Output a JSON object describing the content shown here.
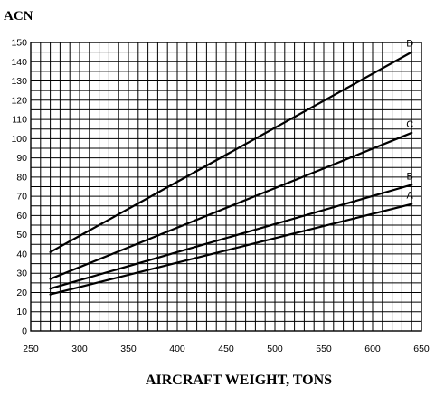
{
  "chart_data": {
    "type": "line",
    "ylabel": "ACN",
    "xlabel": "AIRCRAFT WEIGHT, TONS",
    "xlim": [
      250,
      650
    ],
    "ylim": [
      0,
      150
    ],
    "x_major_step": 50,
    "x_minor_step": 10,
    "y_major_step": 10,
    "y_minor_step": 5,
    "x_ticks": [
      "250",
      "300",
      "350",
      "400",
      "450",
      "500",
      "550",
      "600",
      "650"
    ],
    "y_ticks": [
      "0",
      "10",
      "20",
      "30",
      "40",
      "50",
      "60",
      "70",
      "80",
      "90",
      "100",
      "110",
      "120",
      "130",
      "140",
      "150"
    ],
    "grid": true,
    "series": [
      {
        "name": "D",
        "x": [
          270,
          640
        ],
        "y": [
          41,
          145
        ]
      },
      {
        "name": "C",
        "x": [
          270,
          640
        ],
        "y": [
          27,
          103
        ]
      },
      {
        "name": "B",
        "x": [
          270,
          640
        ],
        "y": [
          22,
          76
        ]
      },
      {
        "name": "A",
        "x": [
          270,
          640
        ],
        "y": [
          19,
          66
        ]
      }
    ]
  }
}
